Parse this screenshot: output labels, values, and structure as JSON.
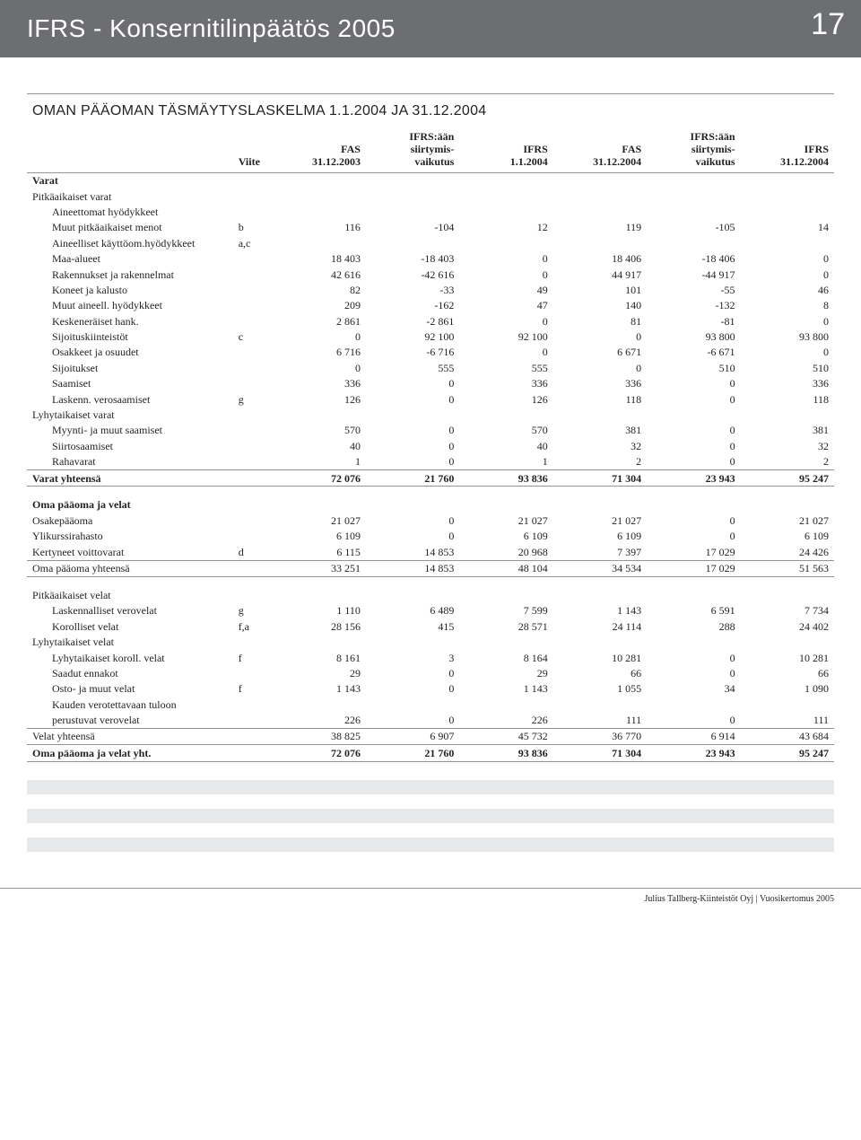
{
  "page": {
    "header_title": "IFRS - Konsernitilinpäätös 2005",
    "page_number": "17",
    "table_title": "OMAN PÄÄOMAN TÄSMÄYTYSLASKELMA 1.1.2004 JA 31.12.2004",
    "footer": "Julius Tallberg-Kiinteistöt Oyj | Vuosikertomus 2005"
  },
  "colors": {
    "band": "#6d6e71",
    "text": "#231f20",
    "rule": "#939598",
    "stripe": "#e8e9ea",
    "white": "#ffffff"
  },
  "header": {
    "viite": "Viite",
    "c1": "FAS 31.12.2003",
    "c2": "IFRS:ään siirtymis-vaikutus",
    "c3": "IFRS 1.1.2004",
    "c4": "FAS 31.12.2004",
    "c5": "IFRS:ään siirtymis-vaikutus",
    "c6": "IFRS 31.12.2004"
  },
  "sections": {
    "varat": "Varat",
    "pvarat": "Pitkäaikaiset varat",
    "aineettomat": "Aineettomat hyödykkeet",
    "r1": {
      "label": "Muut pitkäaikaiset menot",
      "viite": "b",
      "v": [
        "116",
        "-104",
        "12",
        "119",
        "-105",
        "14"
      ]
    },
    "aineelliset": {
      "label": "Aineelliset käyttöom.hyödykkeet",
      "viite": "a,c"
    },
    "r2": {
      "label": "Maa-alueet",
      "v": [
        "18 403",
        "-18 403",
        "0",
        "18 406",
        "-18 406",
        "0"
      ]
    },
    "r3": {
      "label": "Rakennukset ja rakennelmat",
      "v": [
        "42 616",
        "-42 616",
        "0",
        "44 917",
        "-44 917",
        "0"
      ]
    },
    "r4": {
      "label": "Koneet ja kalusto",
      "v": [
        "82",
        "-33",
        "49",
        "101",
        "-55",
        "46"
      ]
    },
    "r5": {
      "label": "Muut aineell. hyödykkeet",
      "v": [
        "209",
        "-162",
        "47",
        "140",
        "-132",
        "8"
      ]
    },
    "r6": {
      "label": "Keskeneräiset hank.",
      "v": [
        "2 861",
        "-2 861",
        "0",
        "81",
        "-81",
        "0"
      ]
    },
    "r7": {
      "label": "Sijoituskiinteistöt",
      "viite": "c",
      "v": [
        "0",
        "92 100",
        "92 100",
        "0",
        "93 800",
        "93 800"
      ]
    },
    "r8": {
      "label": "Osakkeet ja osuudet",
      "v": [
        "6 716",
        "-6 716",
        "0",
        "6 671",
        "-6 671",
        "0"
      ]
    },
    "r9": {
      "label": "Sijoitukset",
      "v": [
        "0",
        "555",
        "555",
        "0",
        "510",
        "510"
      ]
    },
    "r10": {
      "label": "Saamiset",
      "v": [
        "336",
        "0",
        "336",
        "336",
        "0",
        "336"
      ]
    },
    "r11": {
      "label": "Laskenn. verosaamiset",
      "viite": "g",
      "v": [
        "126",
        "0",
        "126",
        "118",
        "0",
        "118"
      ]
    },
    "lvarat": "Lyhytaikaiset varat",
    "r12": {
      "label": "Myynti- ja muut saamiset",
      "v": [
        "570",
        "0",
        "570",
        "381",
        "0",
        "381"
      ]
    },
    "r13": {
      "label": "Siirtosaamiset",
      "v": [
        "40",
        "0",
        "40",
        "32",
        "0",
        "32"
      ]
    },
    "r14": {
      "label": "Rahavarat",
      "v": [
        "1",
        "0",
        "1",
        "2",
        "0",
        "2"
      ]
    },
    "r15": {
      "label": "Varat yhteensä",
      "v": [
        "72 076",
        "21 760",
        "93 836",
        "71 304",
        "23 943",
        "95 247"
      ]
    },
    "opv": "Oma pääoma ja velat",
    "r16": {
      "label": "Osakepääoma",
      "v": [
        "21 027",
        "0",
        "21 027",
        "21 027",
        "0",
        "21 027"
      ]
    },
    "r17": {
      "label": "Ylikurssirahasto",
      "v": [
        "6 109",
        "0",
        "6 109",
        "6 109",
        "0",
        "6 109"
      ]
    },
    "r18": {
      "label": "Kertyneet voittovarat",
      "viite": "d",
      "v": [
        "6 115",
        "14 853",
        "20 968",
        "7 397",
        "17 029",
        "24 426"
      ]
    },
    "r19": {
      "label": "Oma pääoma yhteensä",
      "v": [
        "33 251",
        "14 853",
        "48 104",
        "34 534",
        "17 029",
        "51 563"
      ]
    },
    "pvelat": "Pitkäaikaiset velat",
    "r20": {
      "label": "Laskennalliset verovelat",
      "viite": "g",
      "v": [
        "1 110",
        "6 489",
        "7 599",
        "1 143",
        "6 591",
        "7 734"
      ]
    },
    "r21": {
      "label": "Korolliset velat",
      "viite": "f,a",
      "v": [
        "28 156",
        "415",
        "28 571",
        "24 114",
        "288",
        "24 402"
      ]
    },
    "lvelat": "Lyhytaikaiset velat",
    "r22": {
      "label": "Lyhytaikaiset koroll. velat",
      "viite": "f",
      "v": [
        "8 161",
        "3",
        "8 164",
        "10 281",
        "0",
        "10 281"
      ]
    },
    "r23": {
      "label": "Saadut ennakot",
      "v": [
        "29",
        "0",
        "29",
        "66",
        "0",
        "66"
      ]
    },
    "r24": {
      "label": "Osto- ja muut velat",
      "viite": "f",
      "v": [
        "1 143",
        "0",
        "1 143",
        "1 055",
        "34",
        "1 090"
      ]
    },
    "kauden": "Kauden verotettavaan tuloon",
    "r25": {
      "label": "perustuvat verovelat",
      "v": [
        "226",
        "0",
        "226",
        "111",
        "0",
        "111"
      ]
    },
    "r26": {
      "label": "Velat yhteensä",
      "v": [
        "38 825",
        "6 907",
        "45 732",
        "36 770",
        "6 914",
        "43 684"
      ]
    },
    "r27": {
      "label": "Oma pääoma ja velat yht.",
      "v": [
        "72 076",
        "21 760",
        "93 836",
        "71 304",
        "23 943",
        "95 247"
      ]
    }
  }
}
